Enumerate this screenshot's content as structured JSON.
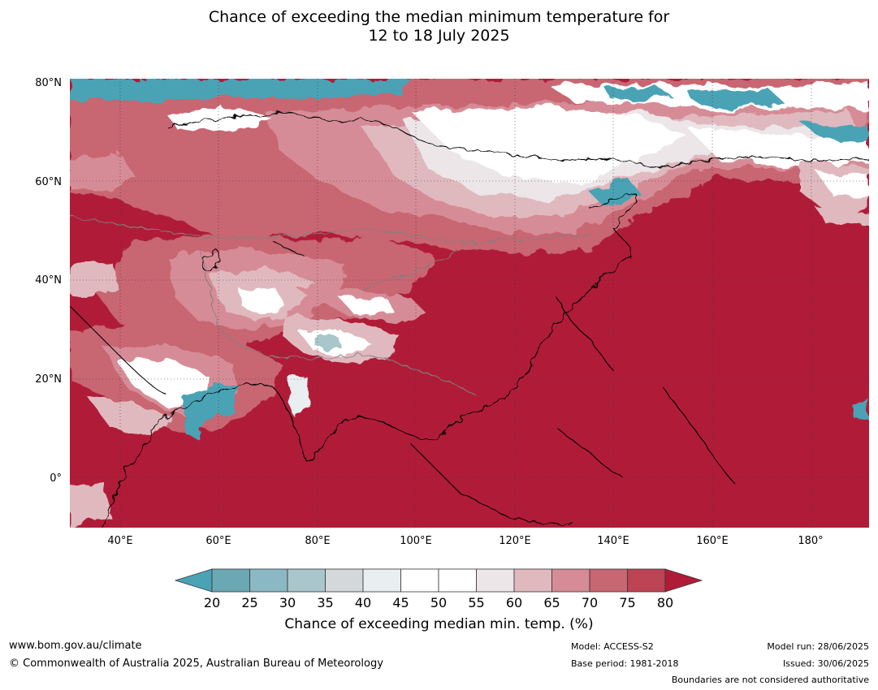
{
  "title": {
    "line1": "Chance of exceeding the median minimum temperature for",
    "line2": "12 to 18 July 2025"
  },
  "map": {
    "lat_labels": [
      "80°N",
      "60°N",
      "40°N",
      "20°N",
      "0°"
    ],
    "lon_labels": [
      "40°E",
      "60°E",
      "80°E",
      "100°E",
      "120°E",
      "140°E",
      "160°E",
      "180°"
    ],
    "background_color": "#b01c38"
  },
  "colorbar": {
    "ticks": [
      "20",
      "25",
      "30",
      "35",
      "40",
      "45",
      "50",
      "55",
      "60",
      "65",
      "70",
      "75",
      "80"
    ],
    "colors": [
      "#6aa8b4",
      "#8ab8c4",
      "#a9c6cc",
      "#d4d8da",
      "#e9eef0",
      "#ffffff",
      "#ffffff",
      "#ece6e8",
      "#e0b9bf",
      "#d68c96",
      "#c86672",
      "#bc4454"
    ],
    "low_extend_color": "#49a3b5",
    "high_extend_color": "#b01c38",
    "label": "Chance of exceeding median min. temp. (%)"
  },
  "footer": {
    "website": "www.bom.gov.au/climate",
    "copyright": "© Commonwealth of Australia 2025, Australian Bureau of Meteorology",
    "model": "Model: ACCESS-S2",
    "base_period": "Base period: 1981-2018",
    "model_run": "Model run: 28/06/2025",
    "issued": "Issued: 30/06/2025",
    "boundaries": "Boundaries are not considered authoritative"
  }
}
